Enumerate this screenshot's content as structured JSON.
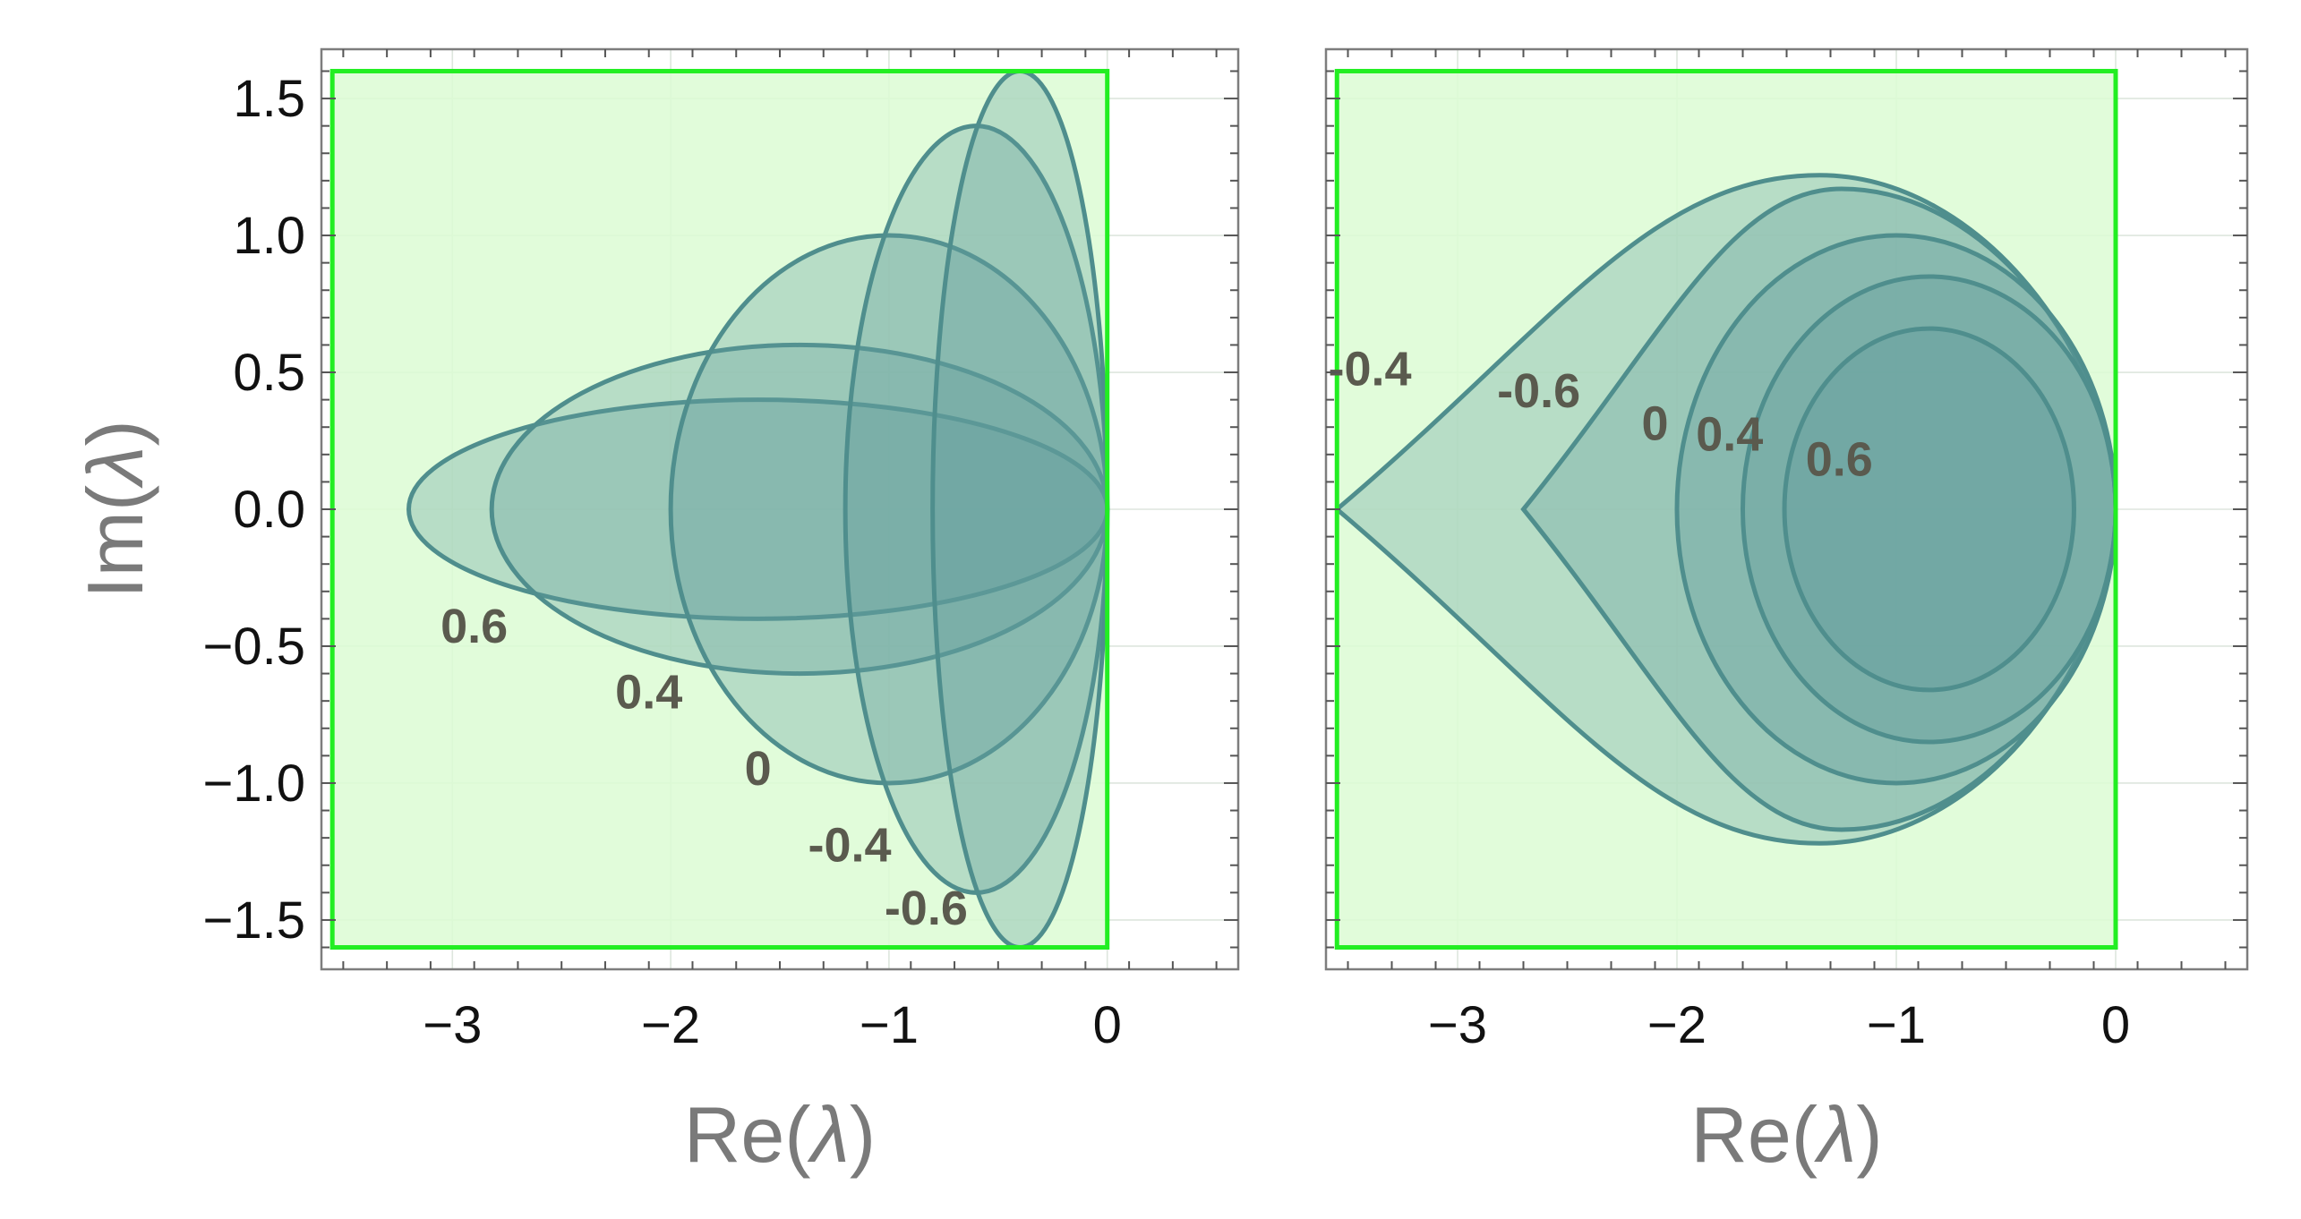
{
  "chart_data": [
    {
      "type": "area",
      "panel": "left",
      "xlabel": "Re(λ)",
      "xlabel_parts": [
        "Re(",
        "λ",
        ")"
      ],
      "ylabel": "Im(λ)",
      "ylabel_parts": [
        "Im(",
        "λ",
        ")"
      ],
      "xlim": [
        -3.6,
        0.6
      ],
      "ylim": [
        -1.68,
        1.68
      ],
      "x_ticks": [
        -3,
        -2,
        -1,
        0
      ],
      "x_tick_labels": [
        "−3",
        "−2",
        "−1",
        "0"
      ],
      "y_ticks": [
        -1.5,
        -1.0,
        -0.5,
        0.0,
        0.5,
        1.0,
        1.5
      ],
      "y_tick_labels": [
        "−1.5",
        "−1.0",
        "−0.5",
        "0.0",
        "0.5",
        "1.0",
        "1.5"
      ],
      "grid": true,
      "region_box": {
        "x": [
          -3.55,
          0
        ],
        "y": [
          -1.6,
          1.6
        ]
      },
      "colors": {
        "region_fill": "#dcfcd4",
        "region_stroke": "#22ee22",
        "curve_fill": "#5f9d9a",
        "curve_stroke": "#4f8e8d"
      },
      "series": [
        {
          "label": "0.6",
          "shape": "ellipse",
          "center": [
            -1.6,
            0
          ],
          "radii": [
            1.6,
            0.4
          ],
          "label_at": [
            -2.9,
            -0.44
          ]
        },
        {
          "label": "0.4",
          "shape": "ellipse",
          "center": [
            -1.41,
            0
          ],
          "radii": [
            1.41,
            0.6
          ],
          "label_at": [
            -2.1,
            -0.68
          ]
        },
        {
          "label": "0",
          "shape": "ellipse",
          "center": [
            -1.0,
            0
          ],
          "radii": [
            1.0,
            1.0
          ],
          "label_at": [
            -1.6,
            -0.96
          ]
        },
        {
          "label": "-0.4",
          "shape": "ellipse",
          "center": [
            -0.6,
            0
          ],
          "radii": [
            0.6,
            1.4
          ],
          "label_at": [
            -1.18,
            -1.24
          ]
        },
        {
          "label": "-0.6",
          "shape": "ellipse",
          "center": [
            -0.4,
            0
          ],
          "radii": [
            0.4,
            1.6
          ],
          "label_at": [
            -0.83,
            -1.47
          ]
        }
      ]
    },
    {
      "type": "area",
      "panel": "right",
      "xlabel": "Re(λ)",
      "xlabel_parts": [
        "Re(",
        "λ",
        ")"
      ],
      "xlim": [
        -3.6,
        0.6
      ],
      "ylim": [
        -1.68,
        1.68
      ],
      "x_ticks": [
        -3,
        -2,
        -1,
        0
      ],
      "x_tick_labels": [
        "−3",
        "−2",
        "−1",
        "0"
      ],
      "grid": true,
      "region_box": {
        "x": [
          -3.55,
          0
        ],
        "y": [
          -1.6,
          1.6
        ]
      },
      "colors": {
        "region_fill": "#dcfcd4",
        "region_stroke": "#22ee22",
        "curve_fill": "#5f9d9a",
        "curve_stroke": "#4f8e8d"
      },
      "series": [
        {
          "label": "-0.4",
          "shape": "cusp",
          "cusp_x": -3.55,
          "right_x": 0,
          "peak": [
            -1.35,
            1.22
          ],
          "label_at": [
            -3.4,
            0.5
          ]
        },
        {
          "label": "-0.6",
          "shape": "cusp",
          "cusp_x": -2.7,
          "right_x": 0,
          "peak": [
            -1.25,
            1.17
          ],
          "label_at": [
            -2.63,
            0.42
          ]
        },
        {
          "label": "0",
          "shape": "ellipse",
          "center": [
            -1.0,
            0
          ],
          "radii": [
            1.0,
            1.0
          ],
          "label_at": [
            -2.1,
            0.3
          ]
        },
        {
          "label": "0.4",
          "shape": "ellipse",
          "center": [
            -0.85,
            0
          ],
          "radii": [
            0.85,
            0.85
          ],
          "label_at": [
            -1.76,
            0.26
          ]
        },
        {
          "label": "0.6",
          "shape": "ellipse",
          "center": [
            -0.85,
            0
          ],
          "radii": [
            0.66,
            0.66
          ],
          "label_at": [
            -1.26,
            0.17
          ]
        }
      ]
    }
  ]
}
